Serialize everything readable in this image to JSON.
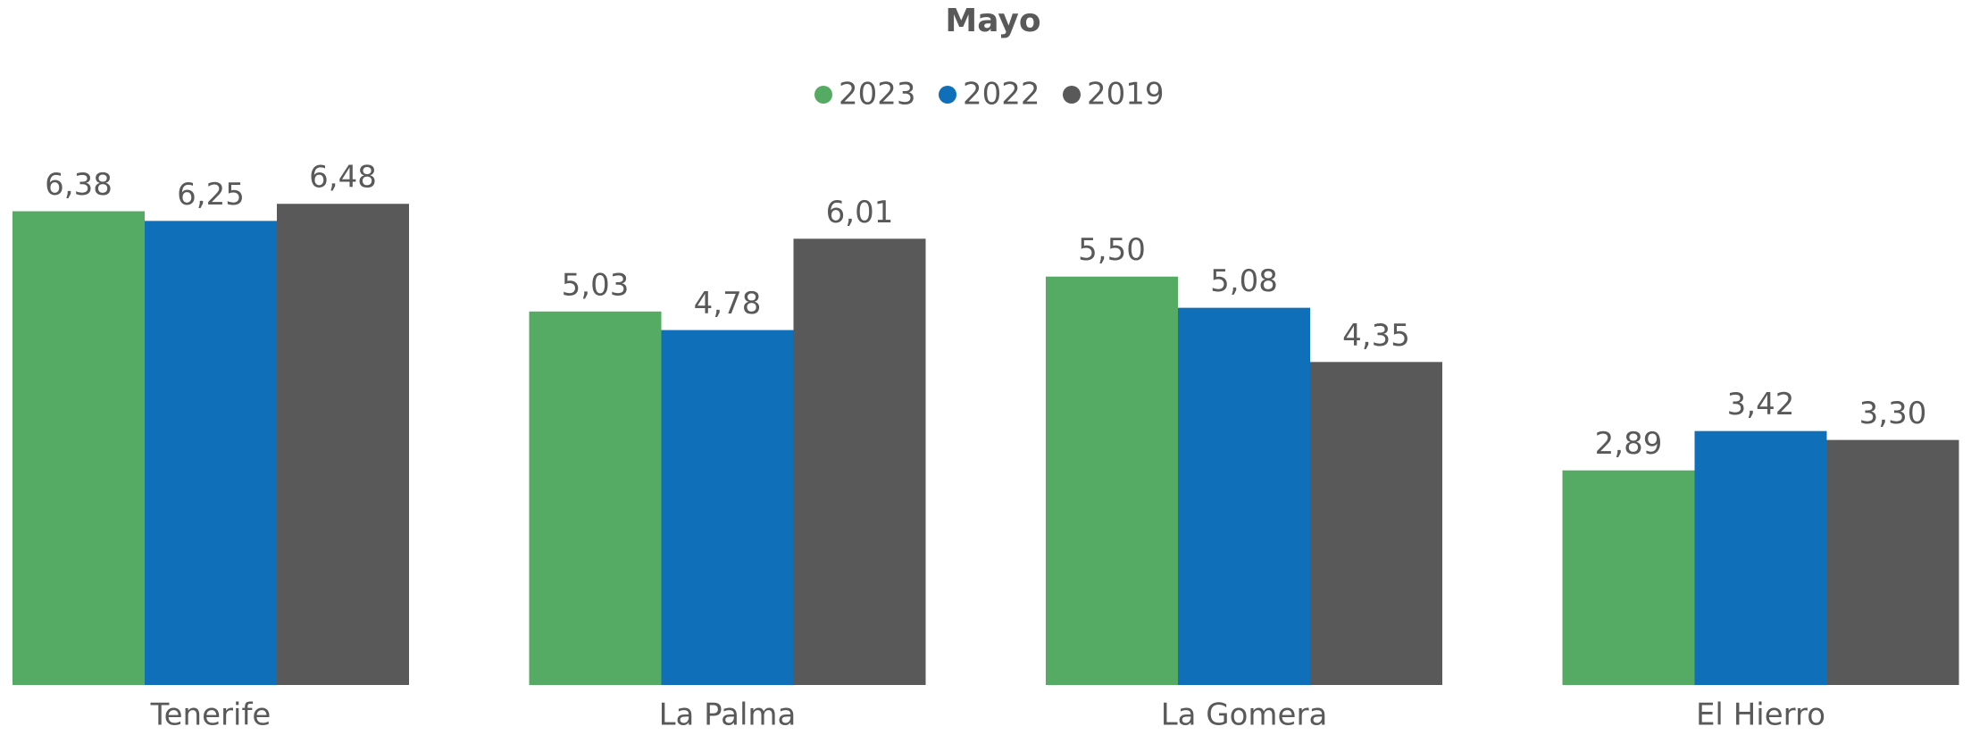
{
  "chart_data": {
    "type": "bar",
    "title": "Mayo",
    "categories": [
      "Tenerife",
      "La Palma",
      "La Gomera",
      "El Hierro"
    ],
    "series": [
      {
        "name": "2023",
        "color": "#55ab63",
        "values": [
          6.38,
          5.03,
          5.5,
          2.89
        ],
        "value_labels": [
          "6,38",
          "5,03",
          "5,50",
          "2,89"
        ]
      },
      {
        "name": "2022",
        "color": "#0f70b9",
        "values": [
          6.25,
          4.78,
          5.08,
          3.42
        ],
        "value_labels": [
          "6,25",
          "4,78",
          "5,08",
          "3,42"
        ]
      },
      {
        "name": "2019",
        "color": "#595959",
        "values": [
          6.48,
          6.01,
          4.35,
          3.3
        ],
        "value_labels": [
          "6,48",
          "6,01",
          "4,35",
          "3,30"
        ]
      }
    ],
    "ylim": [
      0,
      7
    ],
    "legend": "top"
  }
}
